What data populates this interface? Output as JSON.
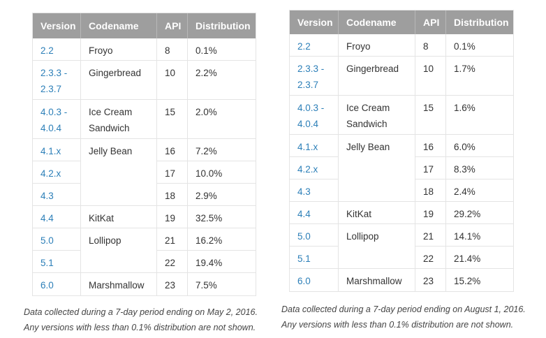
{
  "headers": {
    "version": "Version",
    "codename": "Codename",
    "api": "API",
    "distribution": "Distribution"
  },
  "left": {
    "rows": [
      {
        "version": "2.2",
        "codename": "Froyo",
        "api": "8",
        "distribution": "0.1%"
      },
      {
        "version": "2.3.3 - 2.3.7",
        "codename": "Gingerbread",
        "api": "10",
        "distribution": "2.2%"
      },
      {
        "version": "4.0.3 - 4.0.4",
        "codename": "Ice Cream Sandwich",
        "api": "15",
        "distribution": "2.0%"
      },
      {
        "version": "4.1.x",
        "codename": "Jelly Bean",
        "api": "16",
        "distribution": "7.2%"
      },
      {
        "version": "4.2.x",
        "codename": "",
        "api": "17",
        "distribution": "10.0%"
      },
      {
        "version": "4.3",
        "codename": "",
        "api": "18",
        "distribution": "2.9%"
      },
      {
        "version": "4.4",
        "codename": "KitKat",
        "api": "19",
        "distribution": "32.5%"
      },
      {
        "version": "5.0",
        "codename": "Lollipop",
        "api": "21",
        "distribution": "16.2%"
      },
      {
        "version": "5.1",
        "codename": "",
        "api": "22",
        "distribution": "19.4%"
      },
      {
        "version": "6.0",
        "codename": "Marshmallow",
        "api": "23",
        "distribution": "7.5%"
      }
    ],
    "note_line1": "Data collected during a 7-day period ending on May 2, 2016.",
    "note_line2": "Any versions with less than 0.1% distribution are not shown."
  },
  "right": {
    "rows": [
      {
        "version": "2.2",
        "codename": "Froyo",
        "api": "8",
        "distribution": "0.1%"
      },
      {
        "version": "2.3.3 - 2.3.7",
        "codename": "Gingerbread",
        "api": "10",
        "distribution": "1.7%"
      },
      {
        "version": "4.0.3 - 4.0.4",
        "codename": "Ice Cream Sandwich",
        "api": "15",
        "distribution": "1.6%"
      },
      {
        "version": "4.1.x",
        "codename": "Jelly Bean",
        "api": "16",
        "distribution": "6.0%"
      },
      {
        "version": "4.2.x",
        "codename": "",
        "api": "17",
        "distribution": "8.3%"
      },
      {
        "version": "4.3",
        "codename": "",
        "api": "18",
        "distribution": "2.4%"
      },
      {
        "version": "4.4",
        "codename": "KitKat",
        "api": "19",
        "distribution": "29.2%"
      },
      {
        "version": "5.0",
        "codename": "Lollipop",
        "api": "21",
        "distribution": "14.1%"
      },
      {
        "version": "5.1",
        "codename": "",
        "api": "22",
        "distribution": "21.4%"
      },
      {
        "version": "6.0",
        "codename": "Marshmallow",
        "api": "23",
        "distribution": "15.2%"
      }
    ],
    "note_line1": "Data collected during a 7-day period ending on August 1, 2016.",
    "note_line2": "Any versions with less than 0.1% distribution are not shown."
  },
  "colors": {
    "header_bg": "#9e9e9e",
    "link": "#2c7fb8",
    "border": "#e4e4e4"
  }
}
